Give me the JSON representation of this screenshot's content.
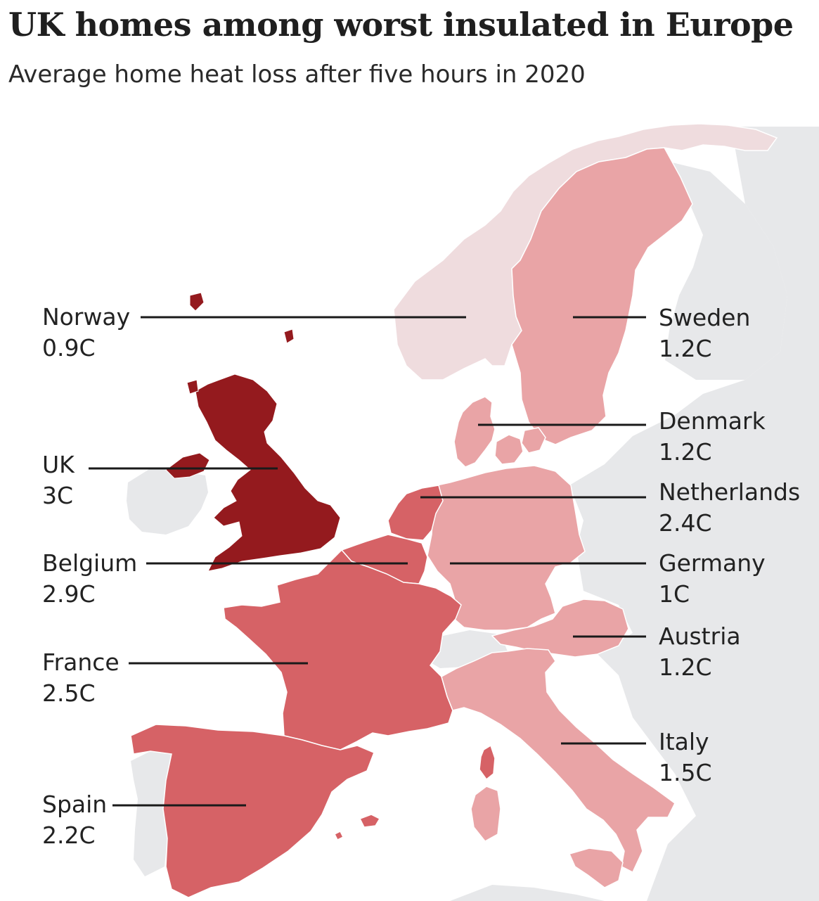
{
  "title": "UK homes among worst insulated in Europe",
  "subtitle": "Average home heat loss after five hours in 2020",
  "colors": {
    "background": "#ffffff",
    "land_other": "#e7e8ea",
    "level_1": "#efdcde",
    "level_2": "#e9a4a6",
    "level_3": "#d66266",
    "level_4": "#941a1e",
    "leader_line": "#1a1a1a"
  },
  "countries": [
    {
      "key": "norway",
      "name": "Norway",
      "value": "0.9C",
      "heat_loss_c": 0.9
    },
    {
      "key": "sweden",
      "name": "Sweden",
      "value": "1.2C",
      "heat_loss_c": 1.2
    },
    {
      "key": "denmark",
      "name": "Denmark",
      "value": "1.2C",
      "heat_loss_c": 1.2
    },
    {
      "key": "uk",
      "name": "UK",
      "value": "3C",
      "heat_loss_c": 3.0
    },
    {
      "key": "netherlands",
      "name": "Netherlands",
      "value": "2.4C",
      "heat_loss_c": 2.4
    },
    {
      "key": "belgium",
      "name": "Belgium",
      "value": "2.9C",
      "heat_loss_c": 2.9
    },
    {
      "key": "germany",
      "name": "Germany",
      "value": "1C",
      "heat_loss_c": 1.0
    },
    {
      "key": "france",
      "name": "France",
      "value": "2.5C",
      "heat_loss_c": 2.5
    },
    {
      "key": "austria",
      "name": "Austria",
      "value": "1.2C",
      "heat_loss_c": 1.2
    },
    {
      "key": "italy",
      "name": "Italy",
      "value": "1.5C",
      "heat_loss_c": 1.5
    },
    {
      "key": "spain",
      "name": "Spain",
      "value": "2.2C",
      "heat_loss_c": 2.2
    }
  ]
}
